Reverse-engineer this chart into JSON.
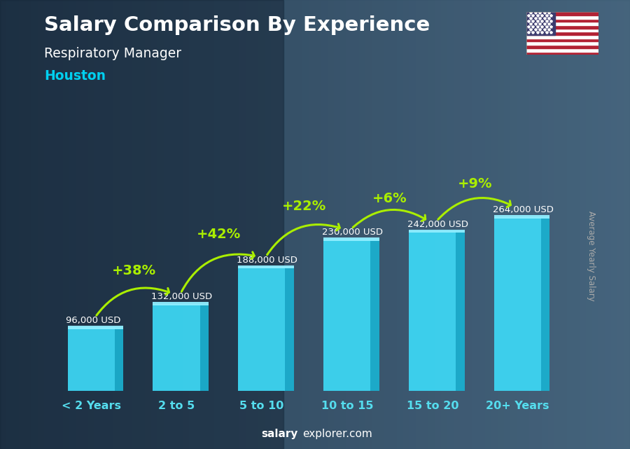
{
  "title_line1": "Salary Comparison By Experience",
  "subtitle_line1": "Respiratory Manager",
  "subtitle_line2": "Houston",
  "categories": [
    "< 2 Years",
    "2 to 5",
    "5 to 10",
    "10 to 15",
    "15 to 20",
    "20+ Years"
  ],
  "values": [
    96000,
    132000,
    188000,
    230000,
    242000,
    264000
  ],
  "value_labels": [
    "96,000 USD",
    "132,000 USD",
    "188,000 USD",
    "230,000 USD",
    "242,000 USD",
    "264,000 USD"
  ],
  "pct_changes": [
    "+38%",
    "+42%",
    "+22%",
    "+6%",
    "+9%"
  ],
  "bar_color_front": "#3dd8f5",
  "bar_color_right": "#1ab0d0",
  "bar_color_top": "#90eeff",
  "bg_color_left": "#2a3f55",
  "bg_color_right": "#4a6a80",
  "title_color": "#ffffff",
  "subtitle_color": "#ffffff",
  "city_color": "#00cfef",
  "label_color": "#ffffff",
  "pct_color": "#aaee00",
  "arrow_color": "#aaee00",
  "axis_label_color": "#55ddee",
  "watermark_bold": "salary",
  "watermark_rest": "explorer.com",
  "ylabel": "Average Yearly Salary",
  "ylabel_color": "#aaaaaa",
  "figsize": [
    9.0,
    6.41
  ],
  "dpi": 100
}
